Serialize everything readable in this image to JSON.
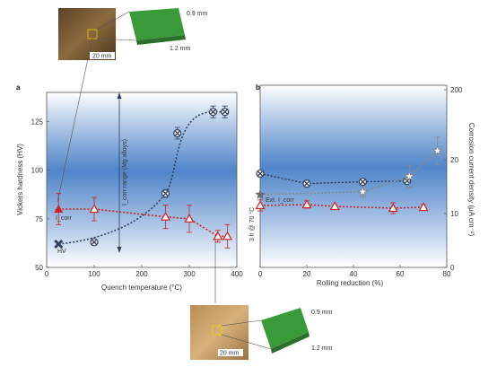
{
  "chart_data": [
    {
      "panel": "a",
      "type": "scatter",
      "xlabel": "Quench temperature (°C)",
      "ylabel": "Vickers hardness (HV)",
      "xlim": [
        0,
        400
      ],
      "ylim": [
        50,
        140
      ],
      "xticks": [
        "0",
        "100",
        "200",
        "300",
        "400"
      ],
      "yticks": [
        "50",
        "75",
        "100",
        "125"
      ],
      "annotation": "I_corr range (Mg alloys)",
      "series": [
        {
          "name": "HV",
          "color": "#2e3e5c",
          "marker": "x",
          "x": [
            25,
            100,
            250,
            275,
            350,
            375
          ],
          "y": [
            62,
            63,
            88,
            119,
            130,
            130
          ],
          "err": [
            0,
            1.5,
            2,
            3,
            3,
            3
          ]
        },
        {
          "name": "I_corr",
          "color": "#cc2222",
          "marker": "triangle",
          "x": [
            25,
            100,
            250,
            300,
            360,
            380
          ],
          "y_axis_ref": "left",
          "y": [
            80,
            80,
            76,
            75,
            66,
            66
          ],
          "err": [
            8,
            6,
            6,
            7,
            3,
            6
          ]
        }
      ]
    },
    {
      "panel": "b",
      "type": "scatter",
      "xlabel": "Rolling reduction (%)",
      "ylabel": "Corrosion current density (μA cm⁻²)",
      "xlim": [
        0,
        80
      ],
      "ylim": [
        0,
        200
      ],
      "xticks": [
        "0",
        "20",
        "40",
        "60",
        "80"
      ],
      "yticks_right": [
        "0",
        "10",
        "20",
        "200"
      ],
      "side_label": "3 h @ 70 °C",
      "annotation": "Ext. I_corr",
      "series": [
        {
          "name": "HV",
          "color": "#2e3e5c",
          "marker": "x",
          "x": [
            0,
            20,
            44,
            63
          ],
          "y": [
            103,
            92,
            94,
            95
          ]
        },
        {
          "name": "Ext. I_corr",
          "color": "#8a8a8a",
          "marker": "star",
          "x": [
            0,
            44,
            64,
            76
          ],
          "y": [
            80,
            83,
            100,
            128
          ],
          "err": [
            0,
            6,
            12,
            15
          ]
        },
        {
          "name": "I_corr",
          "color": "#cc2222",
          "marker": "triangle",
          "x": [
            0,
            20,
            32,
            57,
            70
          ],
          "y": [
            68,
            69,
            67,
            65,
            66
          ],
          "err": [
            6,
            4,
            2,
            6,
            3
          ]
        }
      ]
    }
  ],
  "insets": {
    "top": {
      "scale": "20 mm",
      "dim1": "0.9 mm",
      "dim2": "1.2 mm"
    },
    "bottom": {
      "scale": "20 mm",
      "dim1": "0.9 mm",
      "dim2": "1.2 mm"
    }
  },
  "colors": {
    "hv": "#2e3e5c",
    "icorr": "#cc2222",
    "band": "#3d78c4",
    "photo": "#7a5a36",
    "map": "#3a9a3a"
  }
}
